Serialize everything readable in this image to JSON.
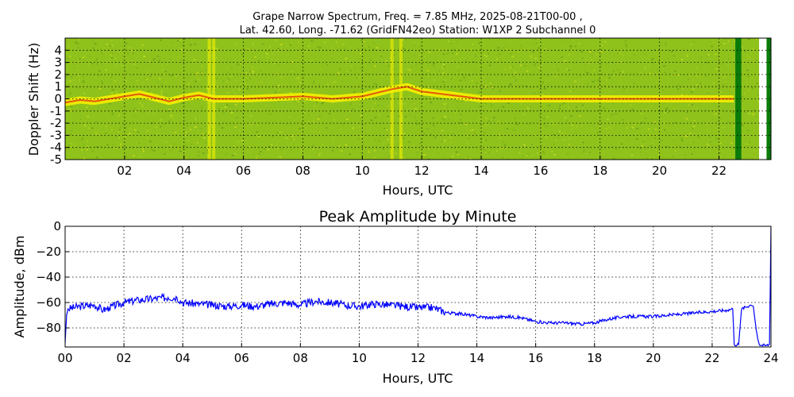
{
  "chart_data": [
    {
      "type": "heatmap",
      "title_line1": "Grape Narrow Spectrum, Freq. = 7.85 MHz, 2025-08-21T00-00 ,",
      "title_line2": "Lat.  42.60, Long. -71.62 (GridFN42eo) Station: W1XP 2 Subchannel 0",
      "xlabel": "Hours, UTC",
      "ylabel": "Doppler Shift (Hz)",
      "xlim": [
        0,
        23.75
      ],
      "ylim": [
        -5,
        5
      ],
      "grid": true,
      "x_ticks": [
        "02",
        "04",
        "06",
        "08",
        "10",
        "12",
        "14",
        "16",
        "18",
        "20",
        "22"
      ],
      "x_tick_values": [
        2,
        4,
        6,
        8,
        10,
        12,
        14,
        16,
        18,
        20,
        22
      ],
      "y_ticks": [
        "4",
        "3",
        "2",
        "1",
        "0",
        "-1",
        "-2",
        "-3",
        "-4",
        "-5"
      ],
      "y_tick_values": [
        4,
        3,
        2,
        1,
        0,
        -1,
        -2,
        -3,
        -4,
        -5
      ],
      "colors": {
        "background": "#8fc21b",
        "signal": "#f5f000",
        "peak": "#e04010",
        "gap_dark": "#0a7a0a"
      },
      "signal_trace": {
        "x": [
          0,
          0.5,
          1,
          1.5,
          2,
          2.5,
          3,
          3.5,
          4,
          4.5,
          5,
          6,
          7,
          8,
          9,
          10,
          10.5,
          11,
          11.5,
          12,
          13,
          14,
          16,
          18,
          20,
          22,
          22.5
        ],
        "y": [
          -0.3,
          -0.1,
          -0.2,
          0,
          0.2,
          0.4,
          0.1,
          -0.2,
          0.1,
          0.3,
          0.0,
          0.0,
          0.1,
          0.2,
          0.0,
          0.2,
          0.5,
          0.8,
          1.0,
          0.6,
          0.3,
          0.0,
          0.0,
          0.0,
          0.0,
          0.0,
          0.0
        ]
      },
      "bright_bands_x": [
        4.85,
        5.0,
        11.0,
        11.3
      ],
      "dark_gaps_x": [
        [
          22.55,
          22.75
        ],
        [
          23.6,
          23.75
        ]
      ],
      "white_gap_x": [
        23.35,
        23.6
      ]
    },
    {
      "type": "line",
      "title": "Peak Amplitude by Minute",
      "xlabel": "Hours, UTC",
      "ylabel": "Amplitude, dBm",
      "xlim": [
        0,
        24
      ],
      "ylim": [
        -95,
        0
      ],
      "grid": true,
      "x_ticks": [
        "00",
        "02",
        "04",
        "06",
        "08",
        "10",
        "12",
        "14",
        "16",
        "18",
        "20",
        "22",
        "24"
      ],
      "x_tick_values": [
        0,
        2,
        4,
        6,
        8,
        10,
        12,
        14,
        16,
        18,
        20,
        22,
        24
      ],
      "y_ticks": [
        "0",
        "−20",
        "−40",
        "−60",
        "−80"
      ],
      "y_tick_values": [
        0,
        -20,
        -40,
        -60,
        -80
      ],
      "line_color": "#0000ff",
      "series": [
        {
          "x": [
            0,
            0.05,
            0.1,
            0.5,
            1.0,
            1.3,
            1.5,
            2.0,
            2.5,
            3.0,
            3.5,
            3.8,
            4.0,
            4.5,
            5.0,
            5.5,
            6.0,
            6.5,
            7.0,
            7.5,
            8.0,
            8.5,
            9.0,
            9.5,
            10.0,
            10.5,
            11.0,
            11.5,
            12.0,
            12.5,
            13.0,
            13.5,
            14.0,
            14.5,
            15.0,
            15.5,
            16.0,
            16.5,
            17.0,
            17.5,
            18.0,
            18.5,
            19.0,
            19.5,
            20.0,
            20.5,
            21.0,
            21.5,
            22.0,
            22.5,
            22.7,
            22.75,
            22.9,
            23.0,
            23.3,
            23.4,
            23.5,
            23.6,
            23.8,
            23.95,
            24.0
          ],
          "y": [
            -92,
            -70,
            -65,
            -63,
            -62,
            -66,
            -64,
            -60,
            -58,
            -57,
            -56,
            -56,
            -60,
            -61,
            -62,
            -63,
            -62,
            -63,
            -61,
            -60,
            -62,
            -59,
            -60,
            -62,
            -63,
            -61,
            -62,
            -63,
            -64,
            -64,
            -68,
            -69,
            -71,
            -72,
            -71,
            -72,
            -75,
            -76,
            -76,
            -77,
            -76,
            -73,
            -71,
            -71,
            -71,
            -70,
            -69,
            -68,
            -67,
            -66,
            -65,
            -93,
            -93,
            -65,
            -62,
            -63,
            -82,
            -93,
            -94,
            -93,
            0
          ]
        }
      ]
    }
  ]
}
